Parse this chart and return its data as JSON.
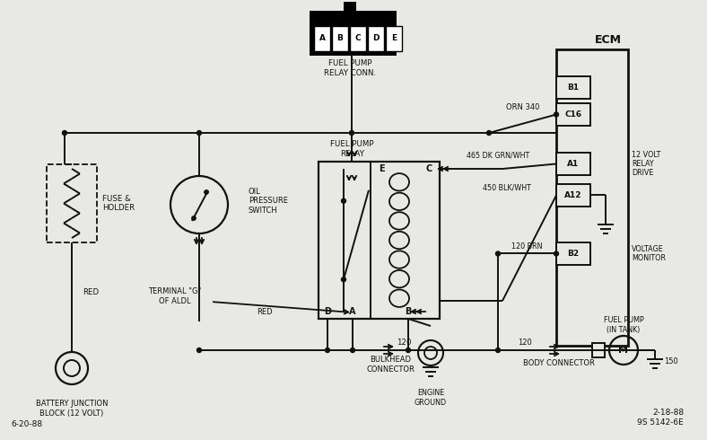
{
  "bg_color": "#e8e8e4",
  "line_color": "#111111",
  "text_color": "#111111",
  "ecm_label": "ECM",
  "fuel_pump_relay_conn_label": "FUEL PUMP\nRELAY CONN.",
  "fuel_pump_relay_label": "FUEL PUMP\nRELAY",
  "oil_pressure_label": "OIL\nPRESSURE\nSWITCH",
  "fuse_label": "FUSE &\nHOLDER",
  "battery_label": "BATTERY JUNCTION\nBLOCK (12 VOLT)",
  "terminal_label": "TERMINAL \"G\"\nOF ALDL",
  "bulkhead_label": "BULKHEAD\nCONNECTOR",
  "body_conn_label": "BODY CONNECTOR",
  "engine_ground_label": "ENGINE\nGROUND",
  "fuel_pump_tank_label": "FUEL PUMP\n(IN TANK)",
  "voltage_monitor_label": "VOLTAGE\nMONITOR",
  "relay_drive_label": "12 VOLT\nRELAY\nDRIVE",
  "orn340": "ORN 340",
  "w465": "465 DK GRN/WHT",
  "w450": "450 BLK/WHT",
  "w120brn": "120 BRN",
  "w120": "120",
  "wred": "RED",
  "ecm_pins": [
    "B1",
    "C16",
    "A1",
    "A12",
    "B2"
  ],
  "connector_pins": [
    "A",
    "B",
    "C",
    "D",
    "E"
  ],
  "date_left": "6-20-88",
  "date_right": "2-18-88\n9S 5142-6E"
}
